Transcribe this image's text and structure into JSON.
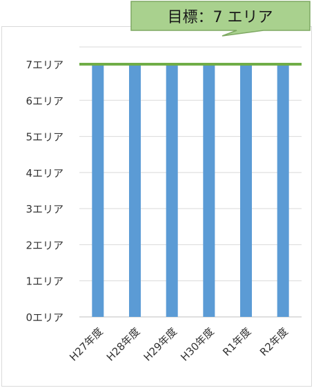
{
  "chart_data": {
    "type": "bar",
    "title": "",
    "xlabel": "",
    "ylabel": "",
    "categories": [
      "H27年度",
      "H28年度",
      "H29年度",
      "H30年度",
      "R1年度",
      "R2年度"
    ],
    "series": [
      {
        "values": [
          7,
          7,
          7,
          7,
          7,
          7
        ],
        "color": "#5b9bd5"
      }
    ],
    "target": {
      "value": 7,
      "label": "目標：7 エリア",
      "line_color": "#70ad47",
      "callout_fill": "#a9d18e",
      "callout_border": "#7ea862"
    },
    "ylim": [
      0,
      7
    ],
    "yticks": [
      0,
      1,
      2,
      3,
      4,
      5,
      6,
      7
    ],
    "y_tick_labels": [
      "0エリア",
      "1エリア",
      "2エリア",
      "3エリア",
      "4エリア",
      "5エリア",
      "6エリア",
      "7エリア"
    ],
    "grid": true,
    "legend": "none"
  }
}
